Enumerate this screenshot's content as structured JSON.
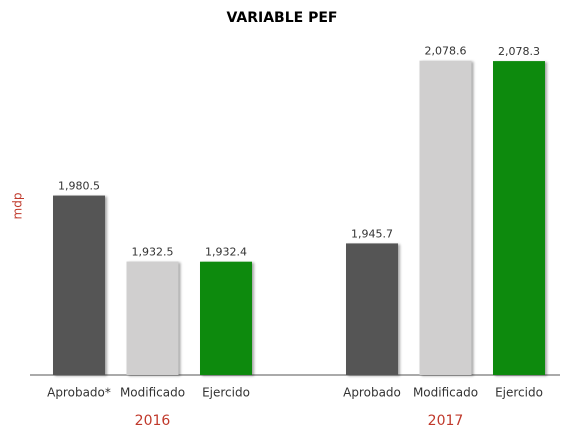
{
  "chart_data": {
    "type": "bar",
    "title": "VARIABLE PEF",
    "y_label": "mdp",
    "ylim": [
      1850,
      2100
    ],
    "colors": [
      "#555555",
      "#d0cfcf",
      "#0a8a0a"
    ],
    "groups": [
      {
        "name": "2016",
        "categories": [
          "Aprobado*",
          "Modificado",
          "Ejercido"
        ],
        "values": [
          1980.5,
          1932.5,
          1932.4
        ],
        "value_labels": [
          "1,980.5",
          "1,932.5",
          "1,932.4"
        ]
      },
      {
        "name": "2017",
        "categories": [
          "Aprobado",
          "Modificado",
          "Ejercido"
        ],
        "values": [
          1945.7,
          2078.6,
          2078.3
        ],
        "value_labels": [
          "1,945.7",
          "2,078.6",
          "2,078.3"
        ]
      }
    ]
  }
}
